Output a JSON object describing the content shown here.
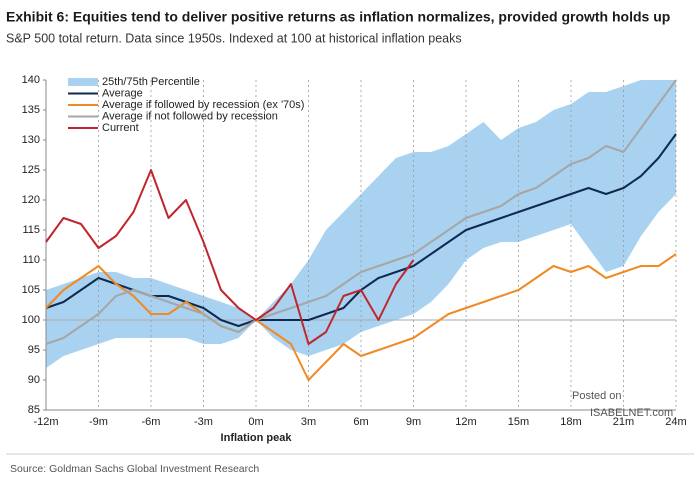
{
  "chart_data": {
    "type": "line",
    "title": "Exhibit 6: Equities tend to deliver positive returns as inflation normalizes, provided growth holds up",
    "subtitle": "S&P 500 total return. Data since 1950s. Indexed at 100 at historical inflation peaks",
    "xlabel": "Inflation peak",
    "source": "Source: Goldman Sachs Global Investment Research",
    "watermark": [
      "Posted on",
      "ISABELNET.com"
    ],
    "x": [
      -12,
      -11,
      -10,
      -9,
      -8,
      -7,
      -6,
      -5,
      -4,
      -3,
      -2,
      -1,
      0,
      1,
      2,
      3,
      4,
      5,
      6,
      7,
      8,
      9,
      10,
      11,
      12,
      13,
      14,
      15,
      16,
      17,
      18,
      19,
      20,
      21,
      22,
      23,
      24
    ],
    "xlim": [
      -12,
      24
    ],
    "xticks": [
      {
        "value": -12,
        "label": "-12m"
      },
      {
        "value": -9,
        "label": "-9m"
      },
      {
        "value": -6,
        "label": "-6m"
      },
      {
        "value": -3,
        "label": "-3m"
      },
      {
        "value": 0,
        "label": "0m"
      },
      {
        "value": 3,
        "label": "3m"
      },
      {
        "value": 6,
        "label": "6m"
      },
      {
        "value": 9,
        "label": "9m"
      },
      {
        "value": 12,
        "label": "12m"
      },
      {
        "value": 15,
        "label": "15m"
      },
      {
        "value": 18,
        "label": "18m"
      },
      {
        "value": 21,
        "label": "21m"
      },
      {
        "value": 24,
        "label": "24m"
      }
    ],
    "ylim": [
      85,
      140
    ],
    "yticks": [
      85,
      90,
      95,
      100,
      105,
      110,
      115,
      120,
      125,
      130,
      135,
      140
    ],
    "reference_line": 100,
    "band": {
      "name": "25th/75th Percentile",
      "color": "#a9d2f0",
      "lower": [
        92,
        94,
        95,
        96,
        97,
        97,
        97,
        97,
        97,
        96,
        96,
        97,
        100,
        97,
        95,
        94,
        95,
        96,
        98,
        99,
        100,
        101,
        103,
        106,
        110,
        112,
        113,
        113,
        114,
        115,
        116,
        112,
        108,
        109,
        114,
        118,
        121
      ],
      "upper": [
        105,
        106,
        107,
        108,
        108,
        107,
        107,
        106,
        105,
        104,
        103,
        102,
        100,
        103,
        106,
        110,
        115,
        118,
        121,
        124,
        127,
        128,
        128,
        129,
        131,
        133,
        130,
        132,
        133,
        135,
        136,
        138,
        138,
        139,
        140,
        140,
        140
      ]
    },
    "series": [
      {
        "name": "Average",
        "color": "#0f2a52",
        "values": [
          102,
          103,
          105,
          107,
          106,
          105,
          104,
          104,
          103,
          102,
          100,
          99,
          100,
          100,
          100,
          100,
          101,
          102,
          105,
          107,
          108,
          109,
          111,
          113,
          115,
          116,
          117,
          118,
          119,
          120,
          121,
          122,
          121,
          122,
          124,
          127,
          131
        ]
      },
      {
        "name": "Average if followed by recession (ex '70s)",
        "color": "#f08a24",
        "values": [
          102,
          105,
          107,
          109,
          106,
          104,
          101,
          101,
          103,
          101,
          99,
          98,
          100,
          98,
          96,
          90,
          93,
          96,
          94,
          95,
          96,
          97,
          99,
          101,
          102,
          103,
          104,
          105,
          107,
          109,
          108,
          109,
          107,
          108,
          109,
          109,
          111
        ]
      },
      {
        "name": "Average if not followed by recession",
        "color": "#a6a6a6",
        "values": [
          96,
          97,
          99,
          101,
          104,
          105,
          104,
          103,
          102,
          101,
          99,
          98,
          100,
          101,
          102,
          103,
          104,
          106,
          108,
          109,
          110,
          111,
          113,
          115,
          117,
          118,
          119,
          121,
          122,
          124,
          126,
          127,
          129,
          128,
          132,
          136,
          140
        ]
      },
      {
        "name": "Current",
        "color": "#c0262d",
        "values": [
          113,
          117,
          116,
          112,
          114,
          118,
          125,
          117,
          120,
          113,
          105,
          102,
          100,
          102,
          106,
          96,
          98,
          104,
          105,
          100,
          106,
          110,
          null,
          null,
          null,
          null,
          null,
          null,
          null,
          null,
          null,
          null,
          null,
          null,
          null,
          null,
          null
        ]
      }
    ]
  }
}
